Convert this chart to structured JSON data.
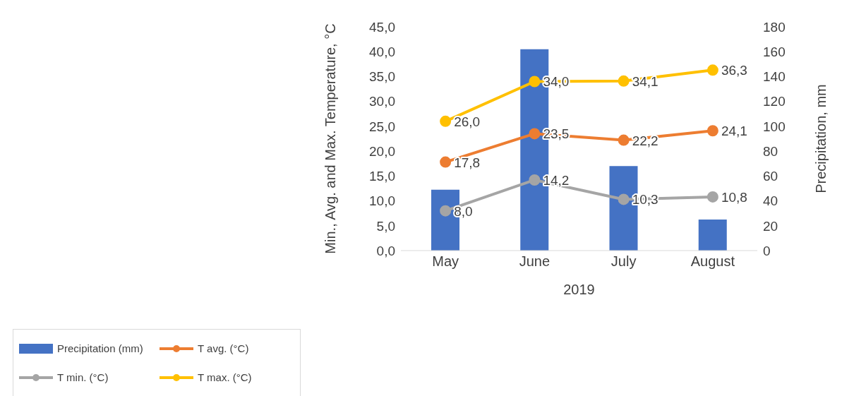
{
  "chart_data": {
    "type": "bar",
    "xlabel": "2019",
    "ylabel": "Min., Avg. and Max. Temperature, °C",
    "y2label": "Precipitation, mm",
    "categories": [
      "May",
      "June",
      "July",
      "August"
    ],
    "series": [
      {
        "name": "Precipitation (mm)",
        "axis": "y2",
        "color": "#4472c4",
        "values": [
          49,
          162,
          68,
          25
        ]
      },
      {
        "name": "T avg. (°C)",
        "type": "line",
        "color": "#ed7d31",
        "values": [
          17.8,
          23.5,
          22.2,
          24.1
        ],
        "value_labels": [
          "17,8",
          "23,5",
          "22,2",
          "24,1"
        ]
      },
      {
        "name": "T min. (°C)",
        "type": "line",
        "color": "#a5a5a5",
        "values": [
          8.0,
          14.2,
          10.3,
          10.8
        ],
        "value_labels": [
          "8,0",
          "14,2",
          "10,3",
          "10,8"
        ]
      },
      {
        "name": "T max. (°C)",
        "type": "line",
        "color": "#ffc000",
        "values": [
          26.0,
          34.0,
          34.1,
          36.3
        ],
        "value_labels": [
          "26,0",
          "34,0",
          "34,1",
          "36,3"
        ]
      }
    ],
    "ylim": [
      0,
      45
    ],
    "yticks": [
      {
        "value": 0,
        "label": "0,0"
      },
      {
        "value": 5,
        "label": "5,0"
      },
      {
        "value": 10,
        "label": "10,0"
      },
      {
        "value": 15,
        "label": "15,0"
      },
      {
        "value": 20,
        "label": "20,0"
      },
      {
        "value": 25,
        "label": "25,0"
      },
      {
        "value": 30,
        "label": "30,0"
      },
      {
        "value": 35,
        "label": "35,0"
      },
      {
        "value": 40,
        "label": "40,0"
      },
      {
        "value": 45,
        "label": "45,0"
      }
    ],
    "y2lim": [
      0,
      180
    ],
    "y2ticks": [
      0,
      20,
      40,
      60,
      80,
      100,
      120,
      140,
      160,
      180
    ],
    "marker": "circle",
    "legend": "bottom left",
    "grid": false
  }
}
